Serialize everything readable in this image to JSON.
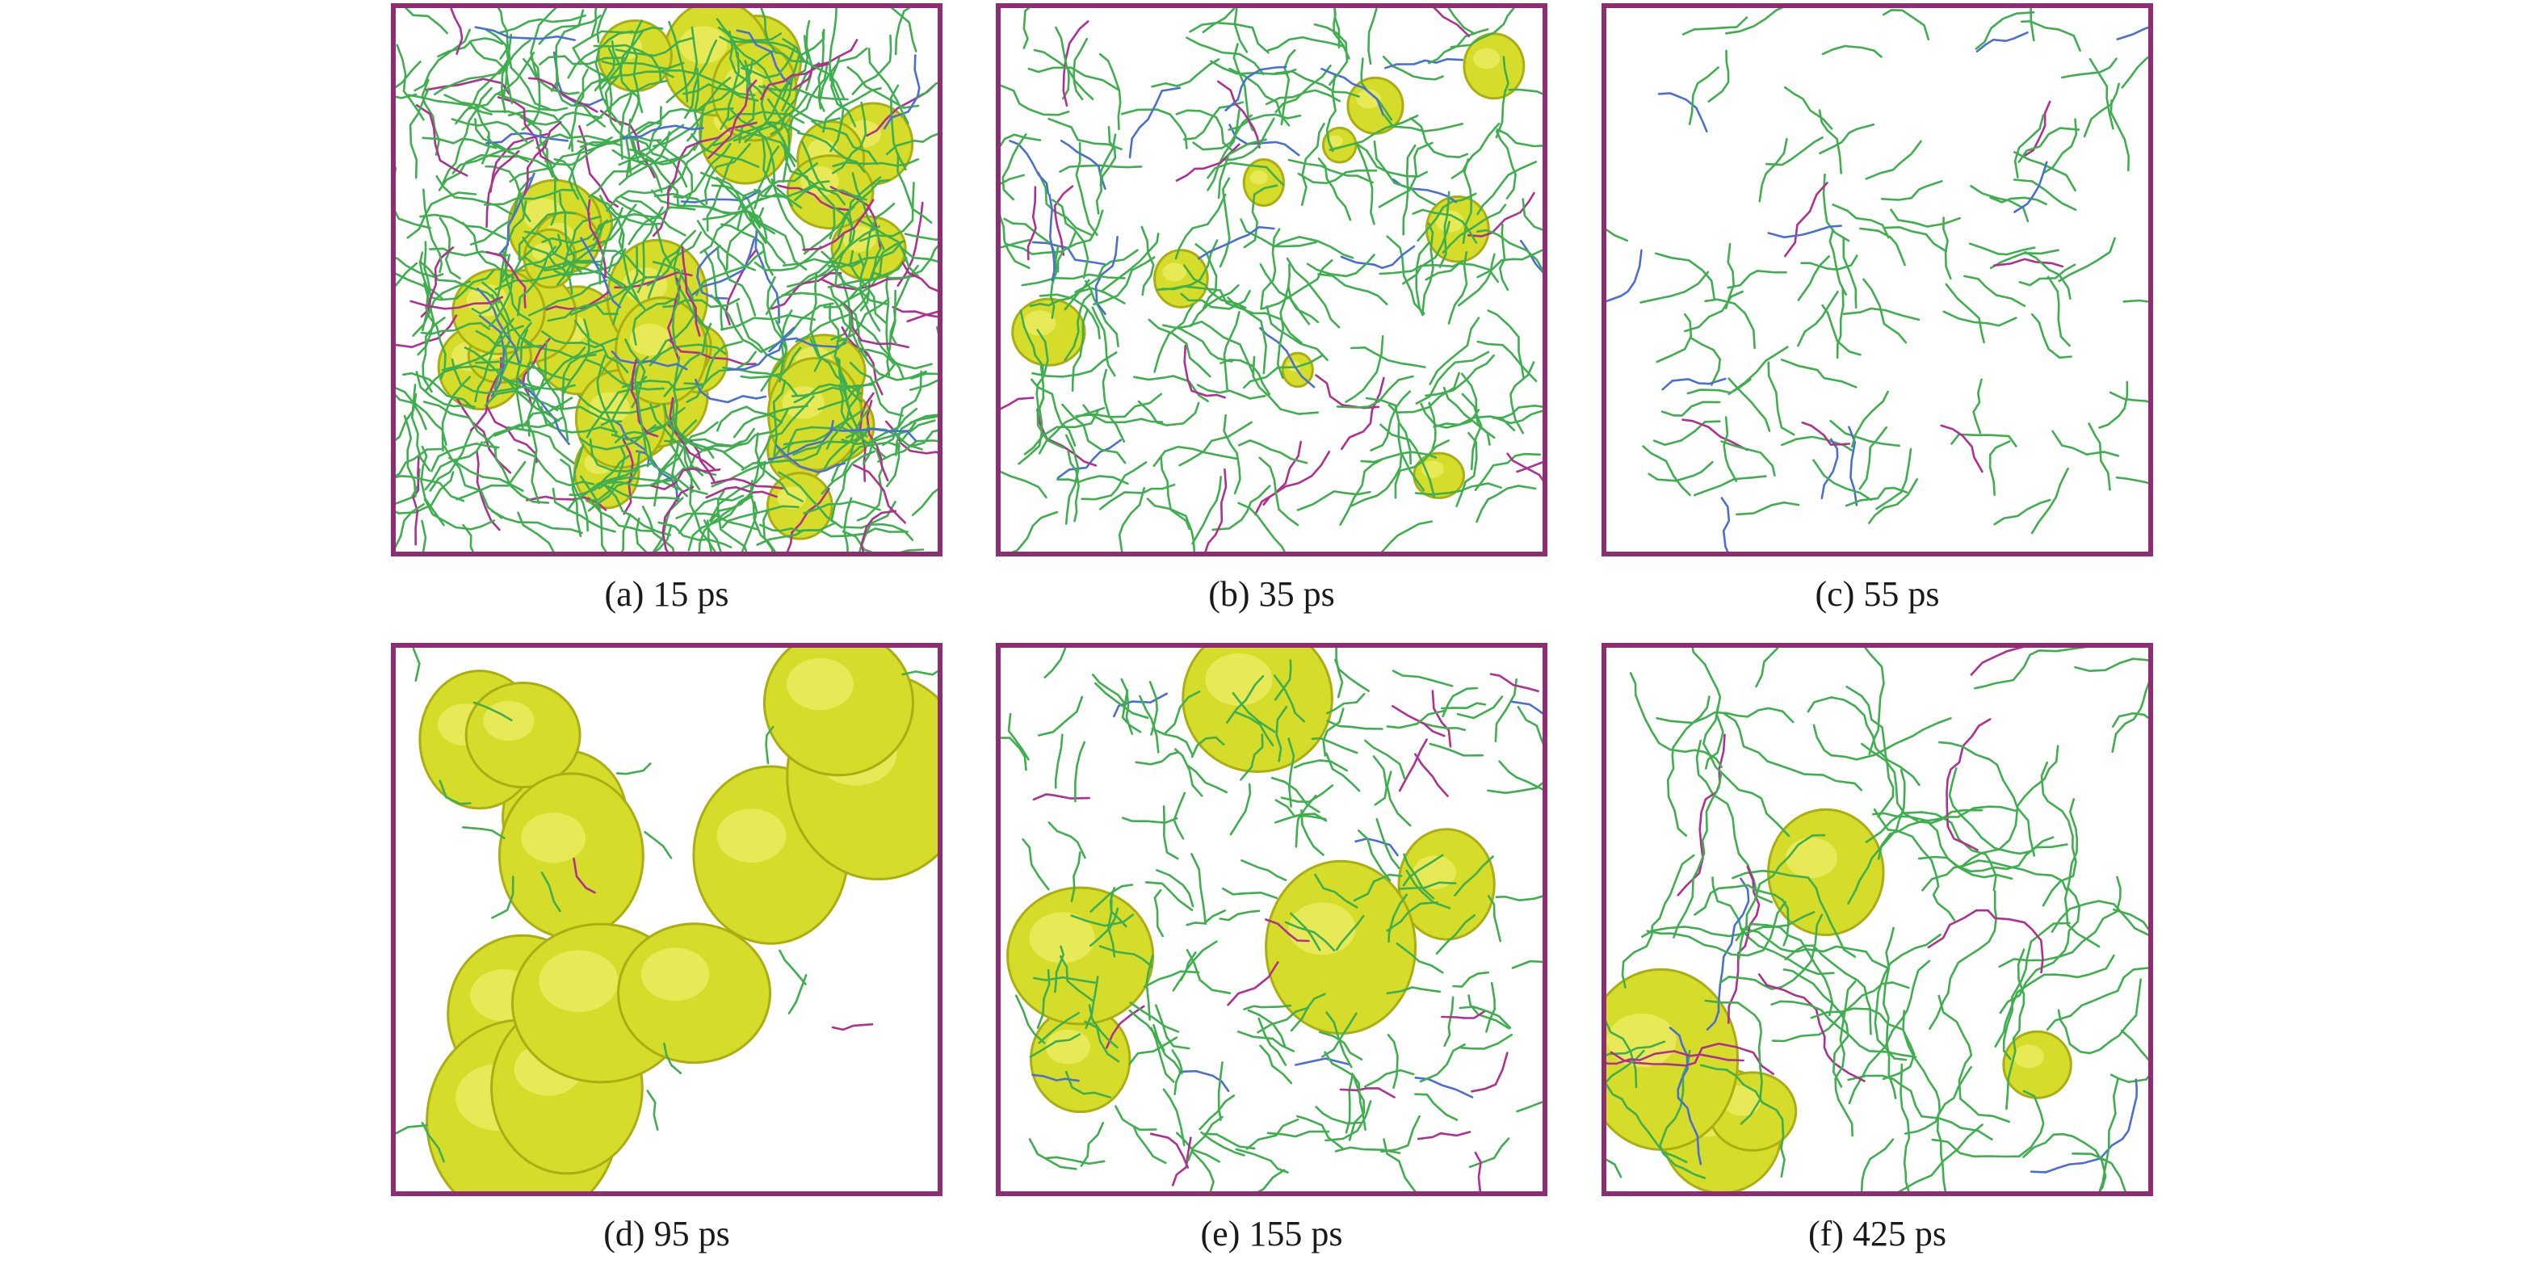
{
  "panels": [
    {
      "caption": "(a) 15 ps"
    },
    {
      "caption": "(b) 35 ps"
    },
    {
      "caption": "(c) 55 ps"
    },
    {
      "caption": "(d) 95 ps"
    },
    {
      "caption": "(e) 155 ps"
    },
    {
      "caption": "(f) 425 ps"
    }
  ]
}
